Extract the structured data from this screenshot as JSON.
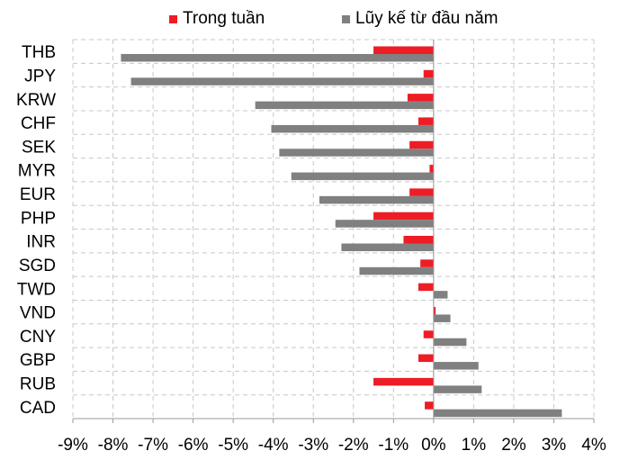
{
  "chart_data": {
    "type": "bar",
    "orientation": "horizontal",
    "categories": [
      "THB",
      "JPY",
      "KRW",
      "CHF",
      "SEK",
      "MYR",
      "EUR",
      "PHP",
      "INR",
      "SGD",
      "TWD",
      "VND",
      "CNY",
      "GBP",
      "RUB",
      "CAD"
    ],
    "series": [
      {
        "name": "Trong  tuần",
        "color": "#ee1c25",
        "values": [
          -1.5,
          -0.25,
          -0.65,
          -0.38,
          -0.6,
          -0.1,
          -0.6,
          -1.5,
          -0.75,
          -0.33,
          -0.38,
          0.05,
          -0.25,
          -0.38,
          -1.5,
          -0.22
        ]
      },
      {
        "name": "Lũy kế từ đầu năm",
        "color": "#808080",
        "values": [
          -7.8,
          -7.55,
          -4.45,
          -4.05,
          -3.85,
          -3.55,
          -2.85,
          -2.45,
          -2.3,
          -1.85,
          0.35,
          0.42,
          0.82,
          1.12,
          1.2,
          3.2
        ]
      }
    ],
    "xlim": [
      -9,
      4
    ],
    "xticks": [
      -9,
      -8,
      -7,
      -6,
      -5,
      -4,
      -3,
      -2,
      -1,
      0,
      1,
      2,
      3,
      4
    ],
    "xtick_labels": [
      "-9%",
      "-8%",
      "-7%",
      "-6%",
      "-5%",
      "-4%",
      "-3%",
      "-2%",
      "-1%",
      "0%",
      "1%",
      "2%",
      "3%",
      "4%"
    ],
    "grid": true,
    "grid_style": "dashed",
    "legend_position": "top"
  }
}
